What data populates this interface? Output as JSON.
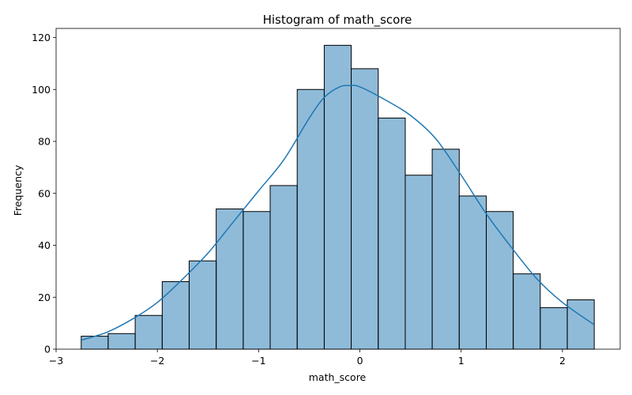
{
  "chart_data": {
    "type": "bar",
    "title": "Histogram of math_score",
    "xlabel": "math_score",
    "ylabel": "Frequency",
    "xlim": [
      -3.0,
      2.57
    ],
    "ylim": [
      0,
      123.5
    ],
    "x_ticks": [
      -3,
      -2,
      -1,
      0,
      1,
      2
    ],
    "x_tick_labels": [
      "−3",
      "−2",
      "−1",
      "0",
      "1",
      "2"
    ],
    "y_ticks": [
      0,
      20,
      40,
      60,
      80,
      100,
      120
    ],
    "y_tick_labels": [
      "0",
      "20",
      "40",
      "60",
      "80",
      "100",
      "120"
    ],
    "bin_edges": [
      -2.752,
      -2.486,
      -2.219,
      -1.952,
      -1.686,
      -1.419,
      -1.152,
      -0.886,
      -0.619,
      -0.352,
      -0.086,
      0.181,
      0.448,
      0.714,
      0.981,
      1.248,
      1.514,
      1.781,
      2.048,
      2.314
    ],
    "counts": [
      5,
      6,
      13,
      26,
      34,
      54,
      53,
      63,
      100,
      117,
      108,
      89,
      67,
      77,
      59,
      53,
      29,
      16,
      19
    ],
    "kde": {
      "x": [
        -2.75,
        -2.5,
        -2.25,
        -2.0,
        -1.75,
        -1.5,
        -1.25,
        -1.0,
        -0.75,
        -0.5,
        -0.35,
        -0.2,
        -0.1,
        0.0,
        0.25,
        0.5,
        0.75,
        1.0,
        1.25,
        1.5,
        1.75,
        2.0,
        2.31
      ],
      "y": [
        3.5,
        6.5,
        11.5,
        18,
        27,
        37,
        49,
        61,
        73,
        89,
        97,
        101,
        101.5,
        101,
        96,
        90,
        81,
        67,
        52,
        39,
        27,
        18,
        9.5
      ]
    },
    "colors": {
      "bar_fill": "#1f77b4",
      "bar_fill_opacity": 0.5,
      "bar_edge": "#000000",
      "kde_line": "#1f77b4"
    },
    "grid": false,
    "legend": "none"
  }
}
